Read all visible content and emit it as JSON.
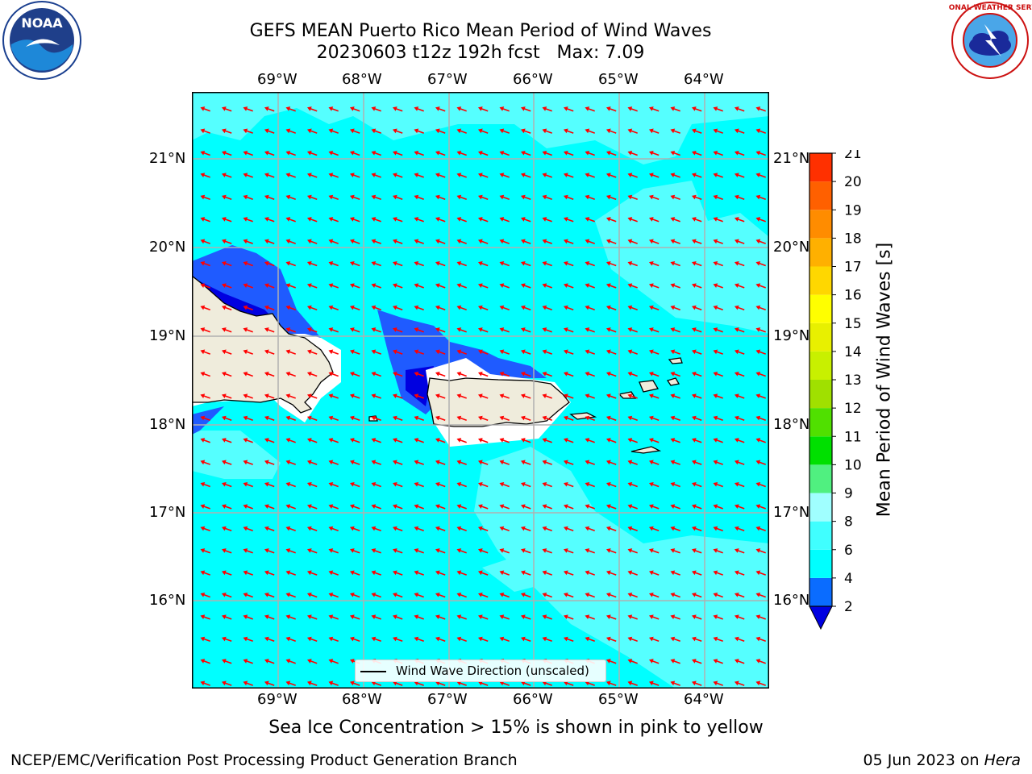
{
  "title": {
    "line1": "GEFS MEAN Puerto Rico Mean Period of Wind Waves",
    "line2": "20230603 t12z 192h fcst   Max: 7.09"
  },
  "logos": {
    "left": "noaa-logo",
    "right": "nws-logo",
    "left_text": "NOAA",
    "right_text": "NATIONAL WEATHER SERVICE"
  },
  "map": {
    "lon_labels": [
      "69°W",
      "68°W",
      "67°W",
      "66°W",
      "65°W",
      "64°W"
    ],
    "lat_labels": [
      "21°N",
      "20°N",
      "19°N",
      "18°N",
      "17°N",
      "16°N"
    ],
    "lon_range": [
      -70,
      -63.3
    ],
    "lat_range": [
      15,
      21.75
    ],
    "gridlines": true,
    "arrow_color": "#ff0000",
    "field_colors": {
      "2-4": "#1f5bff",
      "4-6": "#00ffff",
      "6-8": "#55ffff",
      "below-2": "#0000e0",
      "land": "#efecdc"
    }
  },
  "legend": {
    "label": "Wind Wave Direction (unscaled)"
  },
  "colorbar": {
    "label": "Mean Period of Wind Waves [s]",
    "ticks": [
      2,
      4,
      6,
      8,
      9,
      10,
      11,
      12,
      13,
      14,
      15,
      16,
      17,
      18,
      19,
      20,
      21
    ],
    "colors": [
      "#0a6cff",
      "#00ffff",
      "#40ffff",
      "#a0ffff",
      "#50f080",
      "#00e000",
      "#50e000",
      "#a0e000",
      "#c8f000",
      "#e8f000",
      "#ffff00",
      "#ffd700",
      "#ffb000",
      "#ff8c00",
      "#ff6000",
      "#ff3000"
    ],
    "extend_below_color": "#0000e0"
  },
  "footnote": "Sea Ice Concentration > 15% is shown in pink to yellow",
  "credit": "NCEP/EMC/Verification Post Processing Product Generation Branch",
  "date": {
    "text": "05 Jun 2023 on ",
    "host": "Hera"
  }
}
